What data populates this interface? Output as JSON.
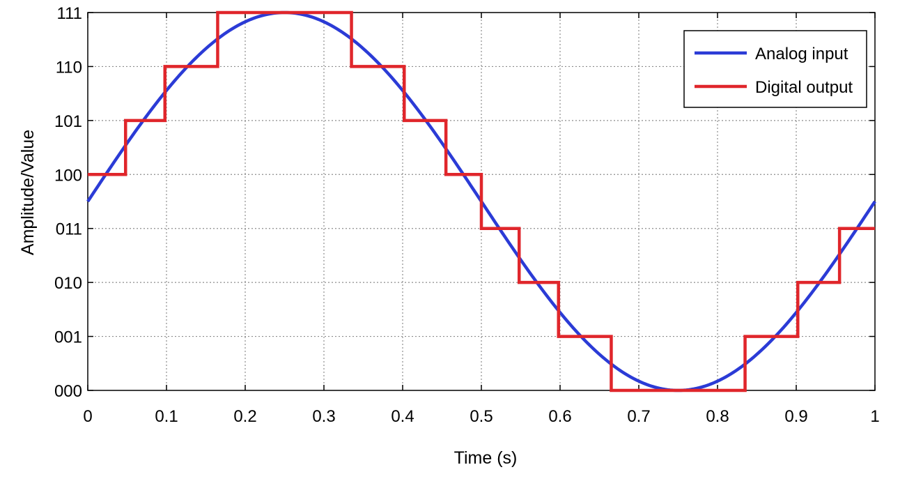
{
  "chart_data": {
    "type": "line",
    "title": "",
    "xlabel": "Time (s)",
    "ylabel": "Amplitude/Value",
    "xlim": [
      0,
      1
    ],
    "ylim": [
      0,
      7
    ],
    "grid": true,
    "legend_position": "top-right",
    "x_ticks": [
      0,
      0.1,
      0.2,
      0.3,
      0.4,
      0.5,
      0.6,
      0.7,
      0.8,
      0.9,
      1
    ],
    "x_tick_labels": [
      "0",
      "0.1",
      "0.2",
      "0.3",
      "0.4",
      "0.5",
      "0.6",
      "0.7",
      "0.8",
      "0.9",
      "1"
    ],
    "y_ticks": [
      0,
      1,
      2,
      3,
      4,
      5,
      6,
      7
    ],
    "y_tick_labels": [
      "000",
      "001",
      "010",
      "011",
      "100",
      "101",
      "110",
      "111"
    ],
    "series": [
      {
        "name": "Analog input",
        "kind": "sine",
        "color": "#2b3bd6",
        "offset": 3.5,
        "amplitude": 3.5,
        "frequency_hz": 1
      },
      {
        "name": "Digital output",
        "kind": "step",
        "color": "#e0262b",
        "x": [
          0,
          0.048,
          0.098,
          0.165,
          0.335,
          0.402,
          0.455,
          0.5,
          0.548,
          0.598,
          0.665,
          0.835,
          0.902,
          0.955,
          1
        ],
        "y": [
          4,
          5,
          6,
          7,
          6,
          5,
          4,
          3,
          2,
          1,
          0,
          1,
          2,
          3,
          3
        ]
      }
    ]
  }
}
